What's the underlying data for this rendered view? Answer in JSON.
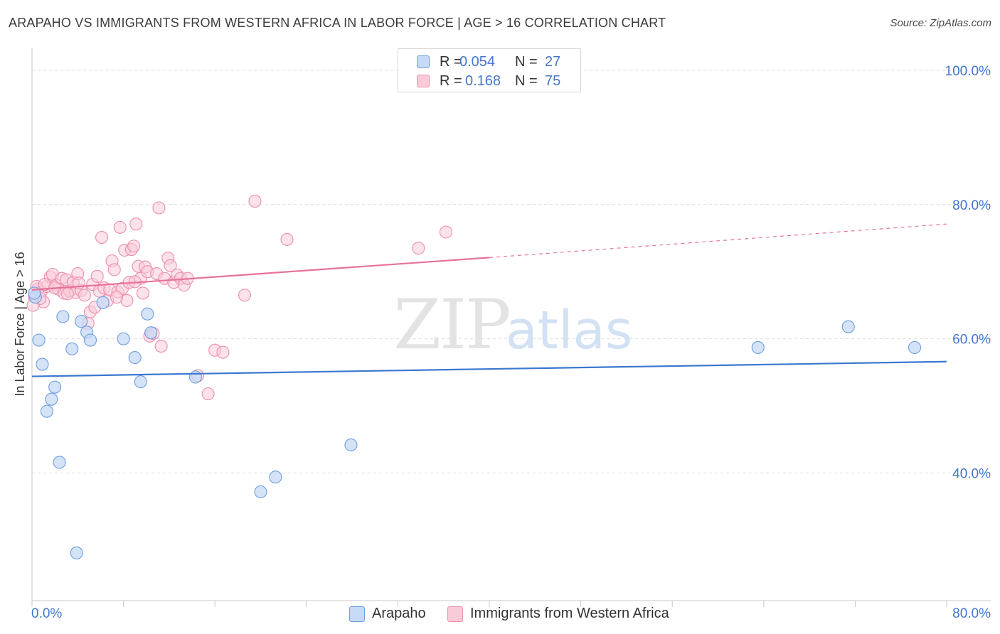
{
  "header": {
    "title": "ARAPAHO VS IMMIGRANTS FROM WESTERN AFRICA IN LABOR FORCE | AGE > 16 CORRELATION CHART",
    "source": "Source: ZipAtlas.com"
  },
  "legend": {
    "series": [
      {
        "r_label": "R =",
        "r_value": "0.054",
        "n_label": "N =",
        "n_value": "27"
      },
      {
        "r_label": "R =",
        "r_value": "0.168",
        "n_label": "N =",
        "n_value": "75"
      }
    ]
  },
  "bottom_legend": {
    "arapaho": "Arapaho",
    "immigrants": "Immigrants from Western Africa"
  },
  "watermark": {
    "zip": "ZIP",
    "atlas": "atlas"
  },
  "colors": {
    "arapaho_fill": "#c6d9f5",
    "arapaho_stroke": "#6f9ee0",
    "arapaho_line": "#3b78d0",
    "immig_fill": "#f9cad8",
    "immig_stroke": "#ec8fab",
    "immig_line": "#e8719a",
    "axis_label": "#4477cc"
  },
  "chart_data": {
    "type": "scatter",
    "title": "ARAPAHO VS IMMIGRANTS FROM WESTERN AFRICA IN LABOR FORCE | AGE > 16 CORRELATION CHART",
    "xlabel": "",
    "ylabel": "In Labor Force | Age > 16",
    "xlim": [
      0,
      80
    ],
    "ylim": [
      21,
      102
    ],
    "x_tick_labels": [
      "0.0%",
      "80.0%"
    ],
    "y_ticks": [
      40,
      60,
      80,
      100
    ],
    "y_tick_labels": [
      "40.0%",
      "60.0%",
      "80.0%",
      "100.0%"
    ],
    "grid": true,
    "series": [
      {
        "name": "Arapaho",
        "r": 0.054,
        "n": 27,
        "trend": {
          "x0": 0,
          "y0": 54.4,
          "x1": 80,
          "y1": 56.6
        },
        "points": [
          {
            "x": 0.3,
            "y": 66.2
          },
          {
            "x": 0.6,
            "y": 59.8
          },
          {
            "x": 0.9,
            "y": 56.2
          },
          {
            "x": 1.3,
            "y": 49.2
          },
          {
            "x": 1.7,
            "y": 51.0
          },
          {
            "x": 2.0,
            "y": 52.8
          },
          {
            "x": 2.4,
            "y": 41.6
          },
          {
            "x": 2.7,
            "y": 63.3
          },
          {
            "x": 3.5,
            "y": 58.5
          },
          {
            "x": 3.9,
            "y": 28.1
          },
          {
            "x": 4.3,
            "y": 62.6
          },
          {
            "x": 4.8,
            "y": 61.0
          },
          {
            "x": 5.1,
            "y": 59.8
          },
          {
            "x": 6.2,
            "y": 65.4
          },
          {
            "x": 8.0,
            "y": 60.0
          },
          {
            "x": 9.0,
            "y": 57.2
          },
          {
            "x": 9.5,
            "y": 53.6
          },
          {
            "x": 10.1,
            "y": 63.7
          },
          {
            "x": 10.4,
            "y": 60.9
          },
          {
            "x": 14.3,
            "y": 54.3
          },
          {
            "x": 20.0,
            "y": 37.2
          },
          {
            "x": 21.3,
            "y": 39.4
          },
          {
            "x": 27.9,
            "y": 44.2
          },
          {
            "x": 63.5,
            "y": 58.7
          },
          {
            "x": 71.4,
            "y": 61.8
          },
          {
            "x": 77.2,
            "y": 58.7
          },
          {
            "x": 0.2,
            "y": 66.8
          }
        ]
      },
      {
        "name": "Immigrants from Western Africa",
        "r": 0.168,
        "n": 75,
        "trend": {
          "x0": 0,
          "y0": 67.3,
          "x1": 40,
          "y1": 72.1,
          "dashed_to_x": 80,
          "dashed_to_y": 77.1
        },
        "points": [
          {
            "x": 0.2,
            "y": 66.3
          },
          {
            "x": 0.5,
            "y": 67.4
          },
          {
            "x": 0.8,
            "y": 67.0
          },
          {
            "x": 1.0,
            "y": 65.5
          },
          {
            "x": 1.3,
            "y": 67.8
          },
          {
            "x": 1.6,
            "y": 69.2
          },
          {
            "x": 1.8,
            "y": 69.6
          },
          {
            "x": 2.1,
            "y": 68.0
          },
          {
            "x": 2.3,
            "y": 67.4
          },
          {
            "x": 2.6,
            "y": 69.0
          },
          {
            "x": 2.8,
            "y": 66.8
          },
          {
            "x": 3.0,
            "y": 68.8
          },
          {
            "x": 3.3,
            "y": 67.1
          },
          {
            "x": 3.6,
            "y": 68.4
          },
          {
            "x": 3.8,
            "y": 66.9
          },
          {
            "x": 4.0,
            "y": 69.7
          },
          {
            "x": 4.3,
            "y": 67.2
          },
          {
            "x": 4.6,
            "y": 66.5
          },
          {
            "x": 4.9,
            "y": 62.3
          },
          {
            "x": 5.1,
            "y": 64.0
          },
          {
            "x": 5.3,
            "y": 68.1
          },
          {
            "x": 5.5,
            "y": 64.7
          },
          {
            "x": 5.7,
            "y": 69.3
          },
          {
            "x": 5.9,
            "y": 67.1
          },
          {
            "x": 6.1,
            "y": 75.1
          },
          {
            "x": 6.3,
            "y": 67.6
          },
          {
            "x": 6.6,
            "y": 65.7
          },
          {
            "x": 6.8,
            "y": 67.3
          },
          {
            "x": 7.0,
            "y": 71.6
          },
          {
            "x": 7.2,
            "y": 70.3
          },
          {
            "x": 7.5,
            "y": 67.0
          },
          {
            "x": 7.7,
            "y": 76.6
          },
          {
            "x": 7.9,
            "y": 67.5
          },
          {
            "x": 8.1,
            "y": 73.2
          },
          {
            "x": 8.3,
            "y": 65.7
          },
          {
            "x": 8.5,
            "y": 68.4
          },
          {
            "x": 8.7,
            "y": 73.3
          },
          {
            "x": 8.9,
            "y": 73.8
          },
          {
            "x": 9.1,
            "y": 77.1
          },
          {
            "x": 9.3,
            "y": 70.8
          },
          {
            "x": 9.5,
            "y": 69.0
          },
          {
            "x": 9.7,
            "y": 66.8
          },
          {
            "x": 9.9,
            "y": 70.7
          },
          {
            "x": 10.1,
            "y": 70.0
          },
          {
            "x": 10.3,
            "y": 60.4
          },
          {
            "x": 10.6,
            "y": 60.8
          },
          {
            "x": 10.9,
            "y": 69.7
          },
          {
            "x": 11.1,
            "y": 79.5
          },
          {
            "x": 11.3,
            "y": 58.9
          },
          {
            "x": 11.6,
            "y": 69.0
          },
          {
            "x": 11.9,
            "y": 72.0
          },
          {
            "x": 12.1,
            "y": 70.9
          },
          {
            "x": 12.4,
            "y": 68.4
          },
          {
            "x": 12.7,
            "y": 69.5
          },
          {
            "x": 13.0,
            "y": 69.0
          },
          {
            "x": 13.3,
            "y": 68.0
          },
          {
            "x": 13.6,
            "y": 69.0
          },
          {
            "x": 14.5,
            "y": 54.5
          },
          {
            "x": 15.4,
            "y": 51.8
          },
          {
            "x": 16.0,
            "y": 58.3
          },
          {
            "x": 16.7,
            "y": 58.0
          },
          {
            "x": 18.6,
            "y": 66.5
          },
          {
            "x": 19.5,
            "y": 80.5
          },
          {
            "x": 22.3,
            "y": 74.8
          },
          {
            "x": 33.8,
            "y": 73.5
          },
          {
            "x": 36.2,
            "y": 75.9
          },
          {
            "x": 0.4,
            "y": 67.8
          },
          {
            "x": 1.1,
            "y": 68.1
          },
          {
            "x": 2.0,
            "y": 67.6
          },
          {
            "x": 3.1,
            "y": 66.7
          },
          {
            "x": 4.1,
            "y": 68.3
          },
          {
            "x": 7.4,
            "y": 66.2
          },
          {
            "x": 9.0,
            "y": 68.5
          },
          {
            "x": 0.7,
            "y": 66.0
          },
          {
            "x": 0.1,
            "y": 65.0
          }
        ]
      }
    ]
  }
}
